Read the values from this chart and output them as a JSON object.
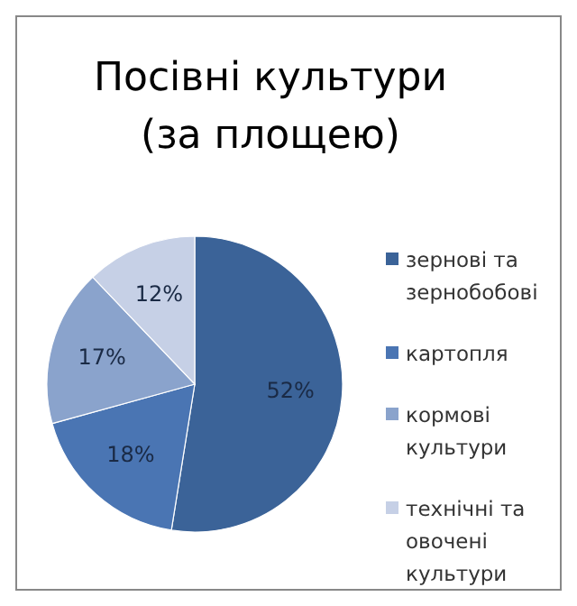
{
  "chart_data": {
    "type": "pie",
    "title": "Посівні культури (за площею)",
    "categories": [
      "зернові та зернобобові",
      "картопля",
      "кормові культури",
      "технічні та овочені культури"
    ],
    "values": [
      52,
      18,
      17,
      12
    ],
    "colors": [
      "#3b6398",
      "#4a75b3",
      "#8aa3cc",
      "#c6d0e6"
    ],
    "value_labels": [
      "52%",
      "18%",
      "17%",
      "12%"
    ],
    "legend": "right"
  }
}
